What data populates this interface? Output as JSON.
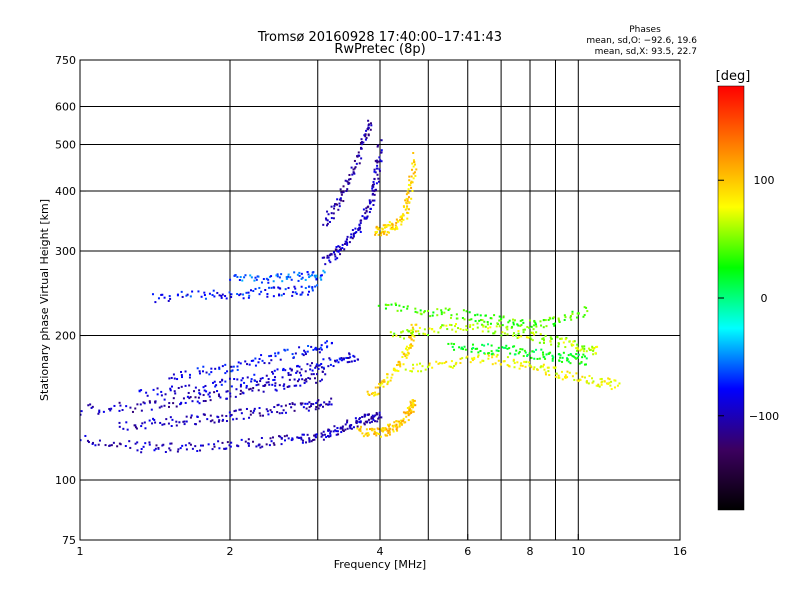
{
  "chart_data": {
    "type": "scatter",
    "title": "Tromsø 20160928 17:40:00–17:41:43",
    "subtitle": "RwPretec (8p)",
    "xlabel": "Frequency [MHz]",
    "ylabel": "Stationary phase Virtual Height [km]",
    "x_scale": "log",
    "y_scale": "log",
    "xlim": [
      1,
      16
    ],
    "ylim": [
      75,
      750
    ],
    "x_ticks": [
      1,
      2,
      4,
      6,
      8,
      10,
      16
    ],
    "x_tick_labels": [
      "1",
      "2",
      "4",
      "6",
      "8",
      "10",
      "16"
    ],
    "x_grid": [
      1,
      2,
      3,
      4,
      5,
      6,
      7,
      8,
      9,
      10,
      16
    ],
    "y_ticks": [
      75,
      100,
      200,
      300,
      400,
      500,
      600,
      750
    ],
    "y_tick_labels": [
      "75",
      "100",
      "200",
      "300",
      "400",
      "500",
      "600",
      "750"
    ],
    "y_grid": [
      100,
      200,
      300,
      400,
      500,
      600
    ],
    "grid": true,
    "phase_stats": {
      "heading": "Phases",
      "line_o": "mean, sd,O: −92.6, 19.6",
      "line_x": "mean, sd,X:  93.5, 22.7"
    },
    "colorbar": {
      "label": "[deg]",
      "range": [
        -180,
        180
      ],
      "ticks": [
        -100,
        0,
        100
      ],
      "tick_labels": [
        "−100",
        "0",
        "100"
      ],
      "colors": [
        "#000000",
        "#3c0060",
        "#0000ff",
        "#00ffff",
        "#00ff00",
        "#ffff00",
        "#ff8000",
        "#ff0000"
      ]
    },
    "traces": [
      {
        "freqs": [
          1.0,
          1.3,
          1.6,
          2.0,
          2.4,
          2.8,
          3.1,
          3.3,
          3.6,
          3.8,
          4.0
        ],
        "heights": [
          122,
          117,
          117,
          118,
          120,
          122,
          124,
          128,
          132,
          134,
          136
        ],
        "phase": -100
      },
      {
        "freqs": [
          1.2,
          1.5,
          1.8,
          2.1,
          2.5,
          2.9,
          3.2
        ],
        "heights": [
          130,
          132,
          134,
          137,
          140,
          143,
          146
        ],
        "phase": -100
      },
      {
        "freqs": [
          1.0,
          1.3,
          1.6,
          1.9,
          2.3,
          2.7,
          3.1
        ],
        "heights": [
          140,
          142,
          146,
          150,
          155,
          160,
          165
        ],
        "phase": -100
      },
      {
        "freqs": [
          1.3,
          1.7,
          2.1,
          2.5,
          2.9,
          3.3,
          3.6
        ],
        "heights": [
          150,
          155,
          160,
          166,
          172,
          178,
          182
        ],
        "phase": -90
      },
      {
        "freqs": [
          1.5,
          1.9,
          2.3,
          2.8,
          3.2
        ],
        "heights": [
          165,
          170,
          178,
          186,
          192
        ],
        "phase": -80
      },
      {
        "freqs": [
          1.4,
          1.8,
          2.2,
          2.6,
          3.0
        ],
        "heights": [
          240,
          243,
          245,
          247,
          250
        ],
        "phase": -75
      },
      {
        "freqs": [
          2.0,
          2.4,
          2.8,
          3.1
        ],
        "heights": [
          262,
          264,
          266,
          268
        ],
        "phase": -60
      },
      {
        "freqs": [
          3.1,
          3.3,
          3.5,
          3.7,
          3.85,
          3.95,
          4.0
        ],
        "heights": [
          285,
          300,
          320,
          345,
          380,
          430,
          500
        ],
        "phase": -100
      },
      {
        "freqs": [
          3.1,
          3.3,
          3.5,
          3.7,
          3.85
        ],
        "heights": [
          340,
          380,
          430,
          500,
          560
        ],
        "phase": -105
      },
      {
        "freqs": [
          3.6,
          3.9,
          4.1,
          4.3,
          4.5,
          4.6,
          4.7
        ],
        "heights": [
          127,
          125,
          126,
          130,
          135,
          140,
          146
        ],
        "phase": 100
      },
      {
        "freqs": [
          3.8,
          4.1,
          4.4,
          4.6,
          4.7
        ],
        "heights": [
          150,
          160,
          175,
          190,
          210
        ],
        "phase": 90
      },
      {
        "freqs": [
          3.9,
          4.1,
          4.3,
          4.5,
          4.6,
          4.7
        ],
        "heights": [
          330,
          332,
          340,
          360,
          400,
          470
        ],
        "phase": 95
      },
      {
        "freqs": [
          4.2,
          5.0,
          6.0,
          7.0,
          8.0,
          9.0,
          10.0,
          11.0
        ],
        "heights": [
          200,
          205,
          210,
          205,
          200,
          195,
          190,
          185
        ],
        "phase": 60
      },
      {
        "freqs": [
          4.5,
          5.5,
          6.5,
          7.5,
          8.5,
          9.5,
          11.0,
          12.0
        ],
        "heights": [
          170,
          175,
          180,
          175,
          170,
          165,
          160,
          158
        ],
        "phase": 80
      },
      {
        "freqs": [
          4.0,
          5.0,
          6.0,
          7.0,
          8.0,
          9.0,
          10.5
        ],
        "heights": [
          230,
          225,
          220,
          215,
          210,
          215,
          225
        ],
        "phase": 40
      },
      {
        "freqs": [
          5.5,
          6.5,
          7.5,
          8.5,
          9.5,
          10.5
        ],
        "heights": [
          190,
          188,
          185,
          182,
          180,
          178
        ],
        "phase": 20
      }
    ]
  }
}
